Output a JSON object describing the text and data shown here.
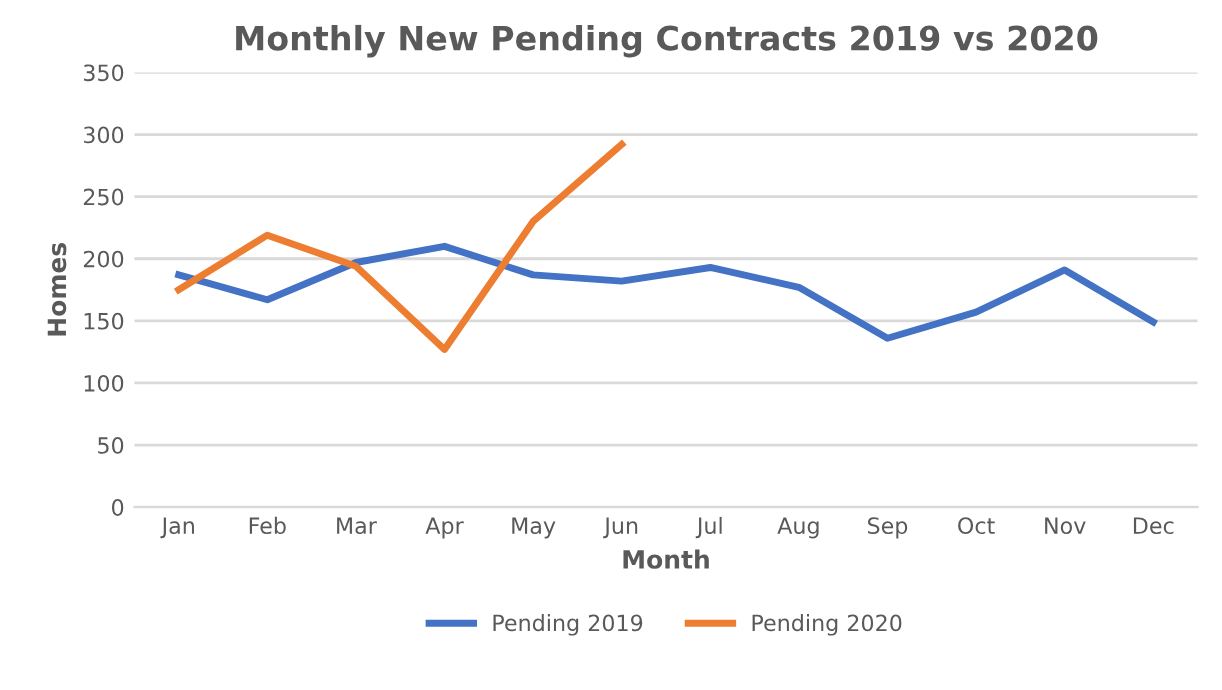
{
  "chart_data": {
    "type": "line",
    "title": "Monthly New Pending Contracts 2019 vs 2020",
    "xlabel": "Month",
    "ylabel": "Homes",
    "categories": [
      "Jan",
      "Feb",
      "Mar",
      "Apr",
      "May",
      "Jun",
      "Jul",
      "Aug",
      "Sep",
      "Oct",
      "Nov",
      "Dec"
    ],
    "series": [
      {
        "name": "Pending 2019",
        "color": "#4472c4",
        "values": [
          187,
          167,
          197,
          210,
          187,
          182,
          193,
          177,
          136,
          157,
          191,
          149
        ]
      },
      {
        "name": "Pending 2020",
        "color": "#ed7d31",
        "values": [
          175,
          219,
          194,
          127,
          230,
          292,
          null,
          null,
          null,
          null,
          null,
          null
        ]
      }
    ],
    "ylim": [
      0,
      350
    ],
    "yticks": [
      0,
      50,
      100,
      150,
      200,
      250,
      300,
      350
    ],
    "grid": "y",
    "legend": "bottom",
    "marker": "none",
    "line_style": "solid"
  }
}
